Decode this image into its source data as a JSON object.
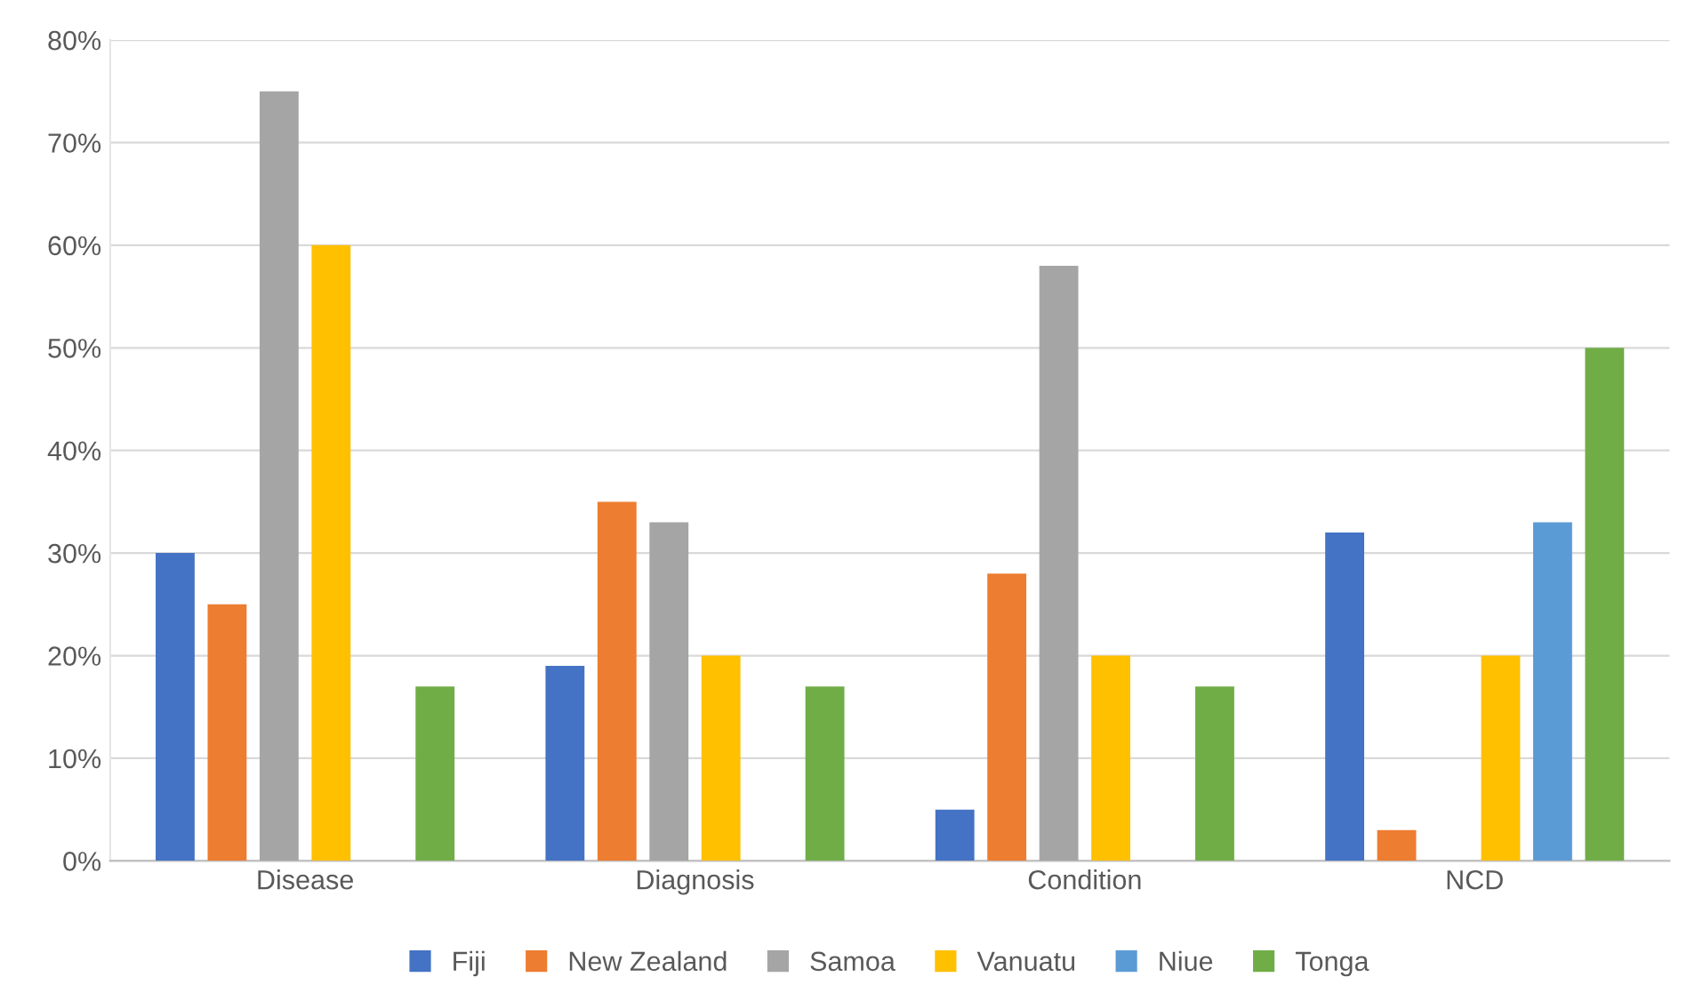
{
  "chart_data": {
    "type": "bar",
    "categories": [
      "Disease",
      "Diagnosis",
      "Condition",
      "NCD"
    ],
    "series": [
      {
        "name": "Fiji",
        "color": "#4472c4",
        "values": [
          30,
          19,
          5,
          32
        ]
      },
      {
        "name": "New Zealand",
        "color": "#ed7d31",
        "values": [
          25,
          35,
          28,
          3
        ]
      },
      {
        "name": "Samoa",
        "color": "#a5a5a5",
        "values": [
          75,
          33,
          58,
          null
        ]
      },
      {
        "name": "Vanuatu",
        "color": "#ffc000",
        "values": [
          60,
          20,
          20,
          20
        ]
      },
      {
        "name": "Niue",
        "color": "#5b9bd5",
        "values": [
          null,
          null,
          null,
          33
        ]
      },
      {
        "name": "Tonga",
        "color": "#70ad47",
        "values": [
          17,
          17,
          17,
          50
        ]
      }
    ],
    "ylim": [
      0,
      80
    ],
    "yticks": [
      {
        "value": 0,
        "label": "0%"
      },
      {
        "value": 10,
        "label": "10%"
      },
      {
        "value": 20,
        "label": "20%"
      },
      {
        "value": 30,
        "label": "30%"
      },
      {
        "value": 40,
        "label": "40%"
      },
      {
        "value": 50,
        "label": "50%"
      },
      {
        "value": 60,
        "label": "60%"
      },
      {
        "value": 70,
        "label": "70%"
      },
      {
        "value": 80,
        "label": "80%"
      }
    ],
    "grid": "y",
    "legend": "bottom"
  }
}
